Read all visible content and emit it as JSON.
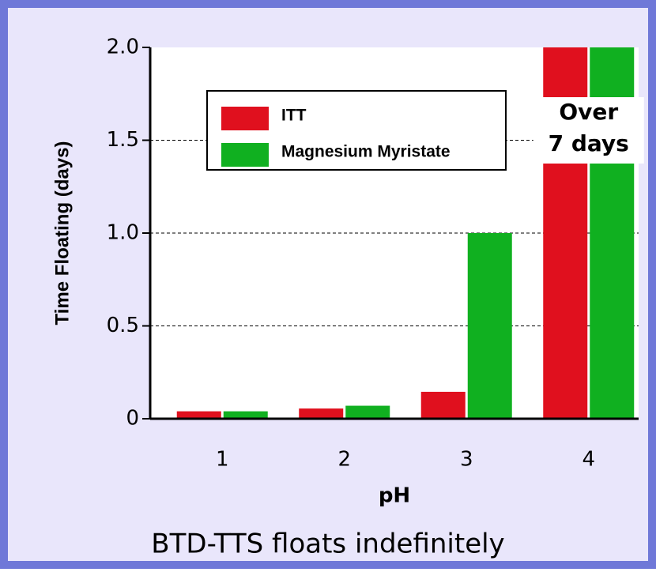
{
  "chart_data": {
    "type": "bar",
    "xlabel": "pH",
    "ylabel": "Time Floating (days)",
    "caption": "BTD-TTS floats indefinitely",
    "categories": [
      "1",
      "2",
      "3",
      "4"
    ],
    "series": [
      {
        "name": "ITT",
        "color": "#e0101e",
        "values": [
          0.04,
          0.055,
          0.145,
          2.0
        ]
      },
      {
        "name": "Magnesium Myristate",
        "color": "#10b020",
        "values": [
          0.04,
          0.07,
          1.0,
          2.0
        ]
      }
    ],
    "ylim": [
      0,
      2
    ],
    "yticks": [
      0,
      0.5,
      {
        "value": 1,
        "label": "1.0"
      },
      1.5,
      {
        "value": 2,
        "label": "2.0"
      }
    ],
    "grid": true,
    "grid_style": "dashed",
    "legend": "upper left",
    "annotation": [
      "Over",
      "7 days"
    ]
  }
}
